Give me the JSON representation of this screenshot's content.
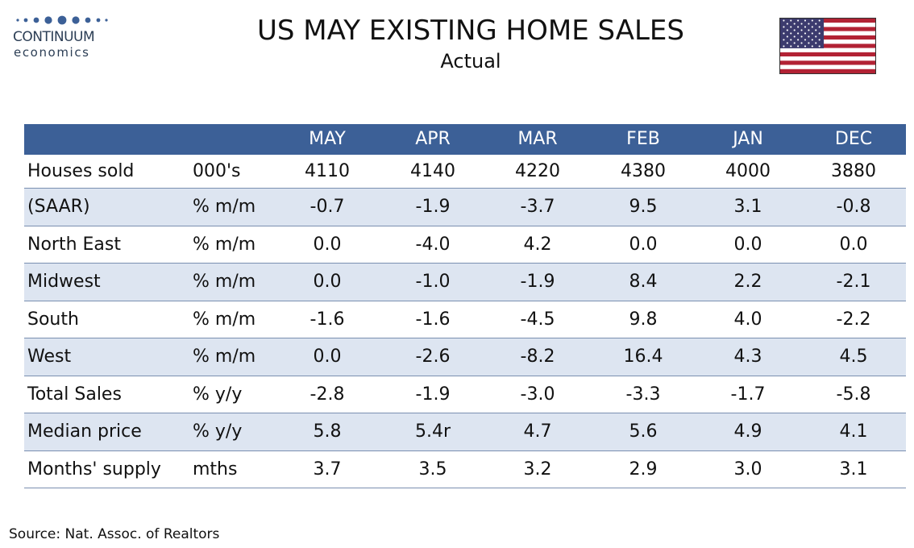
{
  "logo": {
    "line1": "CONTINUUM",
    "line2": "economics",
    "dots_color": "#3c6097",
    "text_color": "#2c3e55"
  },
  "title": "US MAY EXISTING HOME SALES",
  "subtitle": "Actual",
  "flag": {
    "icon": "us-flag-icon",
    "stripe_red": "#b22234",
    "canton_blue": "#3c3b6e"
  },
  "colors": {
    "header_bg": "#3c6097",
    "row_shade": "#dde5f1",
    "row_border": "#7a8fb0"
  },
  "table": {
    "columns": [
      "",
      "",
      "MAY",
      "APR",
      "MAR",
      "FEB",
      "JAN",
      "DEC"
    ],
    "rows": [
      {
        "label": "Houses sold",
        "unit": "000's",
        "values": [
          "4110",
          "4140",
          "4220",
          "4380",
          "4000",
          "3880"
        ]
      },
      {
        "label": "(SAAR)",
        "unit": "% m/m",
        "values": [
          "-0.7",
          "-1.9",
          "-3.7",
          "9.5",
          "3.1",
          "-0.8"
        ]
      },
      {
        "label": "North East",
        "unit": "% m/m",
        "values": [
          "0.0",
          "-4.0",
          "4.2",
          "0.0",
          "0.0",
          "0.0"
        ]
      },
      {
        "label": "Midwest",
        "unit": "% m/m",
        "values": [
          "0.0",
          "-1.0",
          "-1.9",
          "8.4",
          "2.2",
          "-2.1"
        ]
      },
      {
        "label": "South",
        "unit": "% m/m",
        "values": [
          "-1.6",
          "-1.6",
          "-4.5",
          "9.8",
          "4.0",
          "-2.2"
        ]
      },
      {
        "label": "West",
        "unit": "% m/m",
        "values": [
          "0.0",
          "-2.6",
          "-8.2",
          "16.4",
          "4.3",
          "4.5"
        ]
      },
      {
        "label": "Total Sales",
        "unit": "% y/y",
        "values": [
          "-2.8",
          "-1.9",
          "-3.0",
          "-3.3",
          "-1.7",
          "-5.8"
        ]
      },
      {
        "label": "Median price",
        "unit": "% y/y",
        "values": [
          "5.8",
          "5.4r",
          "4.7",
          "5.6",
          "4.9",
          "4.1"
        ]
      },
      {
        "label": "Months' supply",
        "unit": "mths",
        "values": [
          "3.7",
          "3.5",
          "3.2",
          "2.9",
          "3.0",
          "3.1"
        ]
      }
    ]
  },
  "source": "Source: Nat. Assoc. of Realtors"
}
